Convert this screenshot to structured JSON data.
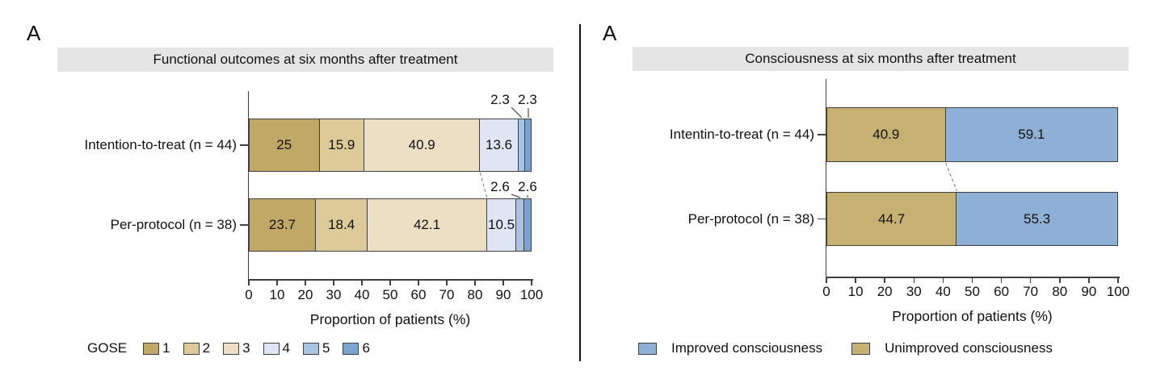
{
  "figure": {
    "background": "#ffffff",
    "text_color": "#111111",
    "banner_bg": "#e5e5e5",
    "axis_color": "#3f3f3f",
    "bar_border_color": "#3f3f3f",
    "leader_line_color": "#4a4a4a",
    "dashed_line_color": "#8a8a8a",
    "divider_color": "#111111"
  },
  "chart_data": [
    {
      "type": "bar",
      "orientation": "horizontal-stacked",
      "panel_label": "A",
      "title": "Functional outcomes at six months after treatment",
      "categories": [
        "Intention-to-treat (n = 44)",
        "Per-protocol (n = 38)"
      ],
      "series": [
        {
          "name": "1",
          "color": "#c2a867",
          "values": [
            25,
            23.7
          ]
        },
        {
          "name": "2",
          "color": "#dccb98",
          "values": [
            15.9,
            18.4
          ]
        },
        {
          "name": "3",
          "color": "#ecdfc3",
          "values": [
            40.9,
            42.1
          ]
        },
        {
          "name": "4",
          "color": "#dfe5f4",
          "values": [
            13.6,
            10.5
          ]
        },
        {
          "name": "5",
          "color": "#a9c4e2",
          "values": [
            2.3,
            2.6
          ]
        },
        {
          "name": "6",
          "color": "#7ba3d0",
          "values": [
            2.3,
            2.6
          ]
        }
      ],
      "value_labels": [
        [
          "25",
          "15.9",
          "40.9",
          "13.6",
          "2.3",
          "2.3"
        ],
        [
          "23.7",
          "18.4",
          "42.1",
          "10.5",
          "2.6",
          "2.6"
        ]
      ],
      "xlabel": "Proportion of patients (%)",
      "xlim": [
        0,
        100
      ],
      "xticks": [
        0,
        10,
        20,
        30,
        40,
        50,
        60,
        70,
        80,
        90,
        100
      ],
      "grid": false,
      "legend_position": "bottom",
      "legend": {
        "title": "GOSE",
        "items": [
          {
            "label": "1",
            "color": "#c2a867"
          },
          {
            "label": "2",
            "color": "#dccb98"
          },
          {
            "label": "3",
            "color": "#ecdfc3"
          },
          {
            "label": "4",
            "color": "#dfe5f4"
          },
          {
            "label": "5",
            "color": "#a9c4e2"
          },
          {
            "label": "6",
            "color": "#7ba3d0"
          }
        ]
      },
      "outside_label_threshold_pct": 5,
      "dashed_connector_after_series": 3
    },
    {
      "type": "bar",
      "orientation": "horizontal-stacked",
      "panel_label": "A",
      "title": "Consciousness at six months after treatment",
      "categories": [
        "Intentin-to-treat (n = 44)",
        "Per-protocol (n = 38)"
      ],
      "series": [
        {
          "name": "Unimproved consciousness",
          "color": "#c6b173",
          "values": [
            40.9,
            44.7
          ]
        },
        {
          "name": "Improved consciousness",
          "color": "#8eb0d6",
          "values": [
            59.1,
            55.3
          ]
        }
      ],
      "value_labels": [
        [
          "40.9",
          "59.1"
        ],
        [
          "44.7",
          "55.3"
        ]
      ],
      "xlabel": "Proportion of patients (%)",
      "xlim": [
        0,
        100
      ],
      "xticks": [
        0,
        10,
        20,
        30,
        40,
        50,
        60,
        70,
        80,
        90,
        100
      ],
      "grid": false,
      "legend_position": "bottom",
      "legend": {
        "title": "",
        "items": [
          {
            "label": "Improved consciousness",
            "color": "#8eb0d6"
          },
          {
            "label": "Unimproved consciousness",
            "color": "#c6b173"
          }
        ]
      },
      "outside_label_threshold_pct": 0,
      "dashed_connector_after_series": 1
    }
  ]
}
